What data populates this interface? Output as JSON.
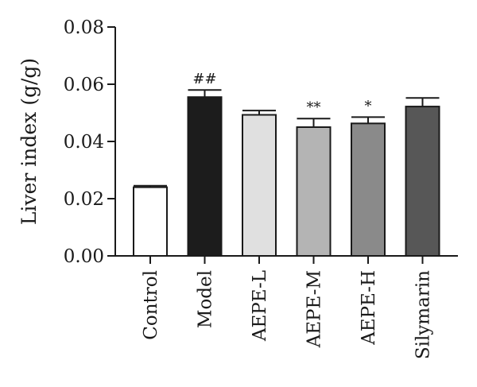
{
  "chart_data": {
    "type": "bar",
    "title": "",
    "xlabel": "",
    "ylabel": "Liver index (g/g)",
    "ylim": [
      0,
      0.08
    ],
    "yticks": [
      "0.00",
      "0.02",
      "0.04",
      "0.06",
      "0.08"
    ],
    "grid": false,
    "legend": "none",
    "categories": [
      "Control",
      "Model",
      "AEPE-L",
      "AEPE-M",
      "AEPE-H",
      "Silymarin"
    ],
    "values": [
      0.024,
      0.0555,
      0.0493,
      0.045,
      0.0463,
      0.0522
    ],
    "errors": [
      0.0005,
      0.0025,
      0.0015,
      0.003,
      0.0022,
      0.003
    ],
    "annotations": [
      "",
      "##",
      "",
      "**",
      "*",
      ""
    ],
    "colors": [
      "#ffffff",
      "#1c1c1c",
      "#e0e0e0",
      "#b4b4b4",
      "#8a8a8a",
      "#575757"
    ]
  }
}
